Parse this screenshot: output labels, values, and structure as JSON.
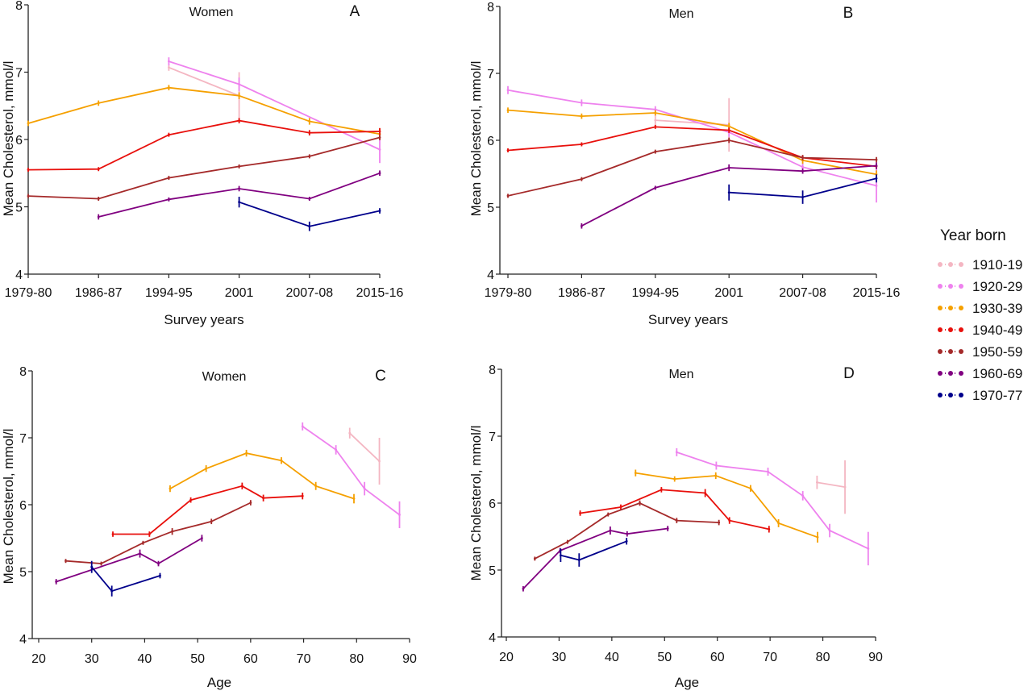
{
  "legend": {
    "title": "Year born",
    "entries": [
      {
        "label": "1910-19",
        "color": "#f4b6c2"
      },
      {
        "label": "1920-29",
        "color": "#ee82ee"
      },
      {
        "label": "1930-39",
        "color": "#f5a000"
      },
      {
        "label": "1940-49",
        "color": "#e8100c"
      },
      {
        "label": "1950-59",
        "color": "#a52a2a"
      },
      {
        "label": "1960-69",
        "color": "#800080"
      },
      {
        "label": "1970-77",
        "color": "#00008b"
      }
    ]
  },
  "chart_data": [
    {
      "type": "line",
      "panel_letter": "A",
      "title": "Women",
      "xlabel": "Survey years",
      "ylabel": "Mean Cholesterol, mmol/l",
      "x_categorical": true,
      "categories": [
        "1979-80",
        "1986-87",
        "1994-95",
        "2001",
        "2007-08",
        "2015-16"
      ],
      "ylim": [
        4,
        8
      ],
      "yticks": [
        4,
        5,
        6,
        7,
        8
      ],
      "series": [
        {
          "name": "1910-19",
          "x": [
            "1994-95",
            "2001"
          ],
          "y": [
            7.07,
            6.65
          ],
          "err": [
            0.05,
            0.35
          ]
        },
        {
          "name": "1920-29",
          "x": [
            "1994-95",
            "2001",
            "2015-16"
          ],
          "y": [
            7.16,
            6.82,
            5.85
          ],
          "err": [
            0.06,
            0.1,
            0.2
          ]
        },
        {
          "name": "1930-39",
          "x": [
            "1979-80",
            "1986-87",
            "1994-95",
            "2001",
            "2007-08",
            "2015-16"
          ],
          "y": [
            6.24,
            6.54,
            6.77,
            6.65,
            6.27,
            6.08
          ],
          "err": [
            0.04,
            0.04,
            0.04,
            0.05,
            0.05,
            0.08
          ]
        },
        {
          "name": "1940-49",
          "x": [
            "1979-80",
            "1986-87",
            "1994-95",
            "2001",
            "2007-08",
            "2015-16"
          ],
          "y": [
            5.55,
            5.56,
            6.07,
            6.28,
            6.1,
            6.12
          ],
          "err": [
            0.03,
            0.03,
            0.03,
            0.04,
            0.04,
            0.05
          ]
        },
        {
          "name": "1950-59",
          "x": [
            "1979-80",
            "1986-87",
            "1994-95",
            "2001",
            "2007-08",
            "2015-16"
          ],
          "y": [
            5.16,
            5.12,
            5.43,
            5.6,
            5.75,
            6.03
          ],
          "err": [
            0.03,
            0.03,
            0.03,
            0.03,
            0.03,
            0.04
          ]
        },
        {
          "name": "1960-69",
          "x": [
            "1986-87",
            "1994-95",
            "2001",
            "2007-08",
            "2015-16"
          ],
          "y": [
            4.85,
            5.11,
            5.27,
            5.12,
            5.5
          ],
          "err": [
            0.04,
            0.03,
            0.04,
            0.03,
            0.04
          ]
        },
        {
          "name": "1970-77",
          "x": [
            "2001",
            "2007-08",
            "2015-16"
          ],
          "y": [
            5.07,
            4.71,
            4.94
          ],
          "err": [
            0.08,
            0.07,
            0.04
          ]
        }
      ]
    },
    {
      "type": "line",
      "panel_letter": "B",
      "title": "Men",
      "xlabel": "Survey years",
      "ylabel": "Mean Cholesterol, mmol/l",
      "x_categorical": true,
      "categories": [
        "1979-80",
        "1986-87",
        "1994-95",
        "2001",
        "2007-08",
        "2015-16"
      ],
      "ylim": [
        4,
        8
      ],
      "yticks": [
        4,
        5,
        6,
        7,
        8
      ],
      "series": [
        {
          "name": "1910-19",
          "x": [
            "1994-95",
            "2001"
          ],
          "y": [
            6.3,
            6.23
          ],
          "err": [
            0.1,
            0.4
          ]
        },
        {
          "name": "1920-29",
          "x": [
            "1979-80",
            "1986-87",
            "1994-95",
            "2001",
            "2007-08",
            "2015-16"
          ],
          "y": [
            6.75,
            6.56,
            6.46,
            6.12,
            5.6,
            5.32
          ],
          "err": [
            0.06,
            0.05,
            0.05,
            0.07,
            0.08,
            0.25
          ]
        },
        {
          "name": "1930-39",
          "x": [
            "1979-80",
            "1986-87",
            "1994-95",
            "2001",
            "2007-08",
            "2015-16"
          ],
          "y": [
            6.45,
            6.36,
            6.41,
            6.21,
            5.7,
            5.49
          ],
          "err": [
            0.04,
            0.04,
            0.04,
            0.05,
            0.05,
            0.06
          ]
        },
        {
          "name": "1940-49",
          "x": [
            "1979-80",
            "1986-87",
            "1994-95",
            "2001",
            "2007-08",
            "2015-16"
          ],
          "y": [
            5.85,
            5.94,
            6.2,
            6.15,
            5.74,
            5.61
          ],
          "err": [
            0.03,
            0.03,
            0.03,
            0.04,
            0.04,
            0.04
          ]
        },
        {
          "name": "1950-59",
          "x": [
            "1979-80",
            "1986-87",
            "1994-95",
            "2001",
            "2007-08",
            "2015-16"
          ],
          "y": [
            5.17,
            5.42,
            5.83,
            6.0,
            5.74,
            5.71
          ],
          "err": [
            0.03,
            0.03,
            0.03,
            0.04,
            0.04,
            0.04
          ]
        },
        {
          "name": "1960-69",
          "x": [
            "1986-87",
            "1994-95",
            "2001",
            "2007-08",
            "2015-16"
          ],
          "y": [
            4.72,
            5.29,
            5.59,
            5.54,
            5.62
          ],
          "err": [
            0.04,
            0.03,
            0.05,
            0.04,
            0.05
          ]
        },
        {
          "name": "1970-77",
          "x": [
            "2001",
            "2007-08",
            "2015-16"
          ],
          "y": [
            5.22,
            5.15,
            5.43
          ],
          "err": [
            0.12,
            0.1,
            0.06
          ]
        }
      ]
    },
    {
      "type": "line",
      "panel_letter": "C",
      "title": "Women",
      "xlabel": "Age",
      "ylabel": "Mean Cholesterol, mmol/l",
      "x_categorical": false,
      "xlim": [
        20,
        90
      ],
      "xticks": [
        20,
        30,
        40,
        50,
        60,
        70,
        80,
        90
      ],
      "ylim": [
        4,
        8
      ],
      "yticks": [
        4,
        5,
        6,
        7,
        8
      ],
      "series": [
        {
          "name": "1910-19",
          "x": [
            78.7,
            84.3
          ],
          "y": [
            7.07,
            6.65
          ],
          "err": [
            0.08,
            0.35
          ]
        },
        {
          "name": "1920-29",
          "x": [
            69.8,
            76.1,
            81.5,
            88.1
          ],
          "y": [
            7.17,
            6.82,
            6.24,
            5.85
          ],
          "err": [
            0.06,
            0.07,
            0.1,
            0.2
          ]
        },
        {
          "name": "1930-39",
          "x": [
            44.8,
            51.6,
            59.2,
            65.8,
            72.3,
            79.5
          ],
          "y": [
            6.24,
            6.54,
            6.77,
            6.66,
            6.28,
            6.09
          ],
          "err": [
            0.05,
            0.05,
            0.05,
            0.05,
            0.06,
            0.07
          ]
        },
        {
          "name": "1940-49",
          "x": [
            34.0,
            40.9,
            48.7,
            58.4,
            62.4,
            69.8
          ],
          "y": [
            5.56,
            5.56,
            6.07,
            6.28,
            6.1,
            6.13
          ],
          "err": [
            0.04,
            0.04,
            0.04,
            0.05,
            0.05,
            0.05
          ]
        },
        {
          "name": "1950-59",
          "x": [
            25.1,
            31.8,
            39.7,
            45.2,
            52.6,
            60.0
          ],
          "y": [
            5.16,
            5.12,
            5.43,
            5.6,
            5.75,
            6.03
          ],
          "err": [
            0.03,
            0.03,
            0.03,
            0.05,
            0.04,
            0.04
          ]
        },
        {
          "name": "1960-69",
          "x": [
            23.3,
            39.1,
            42.6,
            50.8
          ],
          "y": [
            4.85,
            5.27,
            5.12,
            5.5
          ],
          "err": [
            0.04,
            0.06,
            0.04,
            0.05
          ]
        },
        {
          "name": "1970-77",
          "x": [
            30.0,
            33.8,
            42.9
          ],
          "y": [
            5.07,
            4.71,
            4.94
          ],
          "err": [
            0.09,
            0.08,
            0.04
          ]
        }
      ]
    },
    {
      "type": "line",
      "panel_letter": "D",
      "title": "Men",
      "xlabel": "Age",
      "ylabel": "Mean Cholesterol, mmol/l",
      "x_categorical": false,
      "xlim": [
        20,
        90
      ],
      "xticks": [
        20,
        30,
        40,
        50,
        60,
        70,
        80,
        90
      ],
      "ylim": [
        4,
        8
      ],
      "yticks": [
        4,
        5,
        6,
        7,
        8
      ],
      "series": [
        {
          "name": "1910-19",
          "x": [
            78.9,
            84.2
          ],
          "y": [
            6.31,
            6.24
          ],
          "err": [
            0.1,
            0.4
          ]
        },
        {
          "name": "1920-29",
          "x": [
            52.3,
            59.8,
            69.6,
            76.2,
            81.3,
            88.6
          ],
          "y": [
            6.76,
            6.56,
            6.47,
            6.11,
            5.59,
            5.32
          ],
          "err": [
            0.06,
            0.06,
            0.06,
            0.07,
            0.1,
            0.25
          ]
        },
        {
          "name": "1930-39",
          "x": [
            44.5,
            51.9,
            59.7,
            66.3,
            71.6,
            79.0
          ],
          "y": [
            6.45,
            6.36,
            6.41,
            6.22,
            5.7,
            5.49
          ],
          "err": [
            0.05,
            0.04,
            0.05,
            0.05,
            0.06,
            0.08
          ]
        },
        {
          "name": "1940-49",
          "x": [
            34.0,
            41.7,
            49.4,
            57.7,
            62.3,
            69.8
          ],
          "y": [
            5.85,
            5.94,
            6.2,
            6.15,
            5.74,
            5.61
          ],
          "err": [
            0.04,
            0.04,
            0.04,
            0.06,
            0.05,
            0.05
          ]
        },
        {
          "name": "1950-59",
          "x": [
            25.4,
            31.6,
            39.3,
            45.3,
            52.3,
            60.3
          ],
          "y": [
            5.17,
            5.42,
            5.83,
            6.0,
            5.74,
            5.71
          ],
          "err": [
            0.03,
            0.03,
            0.03,
            0.04,
            0.04,
            0.04
          ]
        },
        {
          "name": "1960-69",
          "x": [
            23.2,
            30.2,
            39.7,
            42.9,
            50.6
          ],
          "y": [
            4.72,
            5.29,
            5.59,
            5.54,
            5.62
          ],
          "err": [
            0.04,
            0.04,
            0.06,
            0.04,
            0.04
          ]
        },
        {
          "name": "1970-77",
          "x": [
            30.3,
            33.8,
            42.8
          ],
          "y": [
            5.22,
            5.15,
            5.43
          ],
          "err": [
            0.1,
            0.1,
            0.05
          ]
        }
      ]
    }
  ]
}
